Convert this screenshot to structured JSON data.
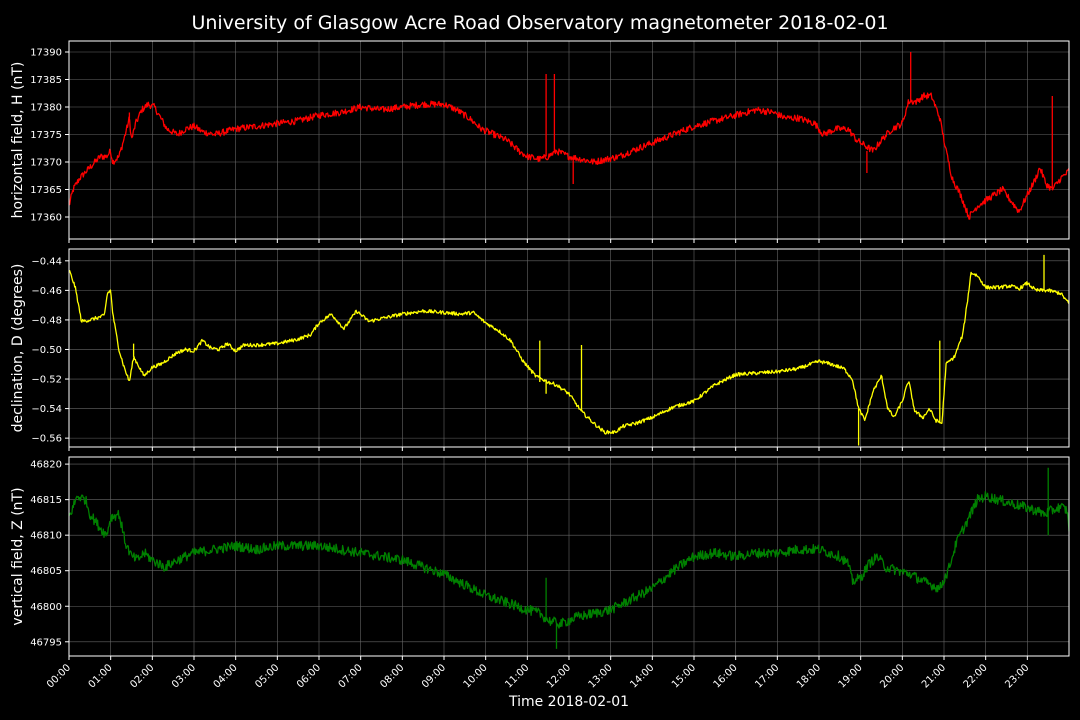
{
  "chart_data": {
    "type": "line",
    "title": "University of Glasgow Acre Road Observatory magnetometer 2018-02-01",
    "xlabel": "Time 2018-02-01",
    "x_ticks": [
      "00:00",
      "01:00",
      "02:00",
      "03:00",
      "04:00",
      "05:00",
      "06:00",
      "07:00",
      "08:00",
      "09:00",
      "10:00",
      "11:00",
      "12:00",
      "13:00",
      "14:00",
      "15:00",
      "16:00",
      "17:00",
      "18:00",
      "19:00",
      "20:00",
      "21:00",
      "22:00",
      "23:00"
    ],
    "grid": true,
    "panels": [
      {
        "ylabel": "horizontal field, H (nT)",
        "color": "#ff0000",
        "ylim": [
          17356,
          17392
        ],
        "yticks": [
          17360,
          17365,
          17370,
          17375,
          17380,
          17385,
          17390
        ],
        "ytick_labels": [
          "17360",
          "17365",
          "17370",
          "17375",
          "17380",
          "17385",
          "17390"
        ],
        "noise": 0.6,
        "points": [
          [
            0.0,
            17362
          ],
          [
            0.1,
            17365
          ],
          [
            0.25,
            17367
          ],
          [
            0.5,
            17369
          ],
          [
            0.75,
            17371
          ],
          [
            0.9,
            17371
          ],
          [
            1.0,
            17372
          ],
          [
            1.05,
            17370
          ],
          [
            1.2,
            17371
          ],
          [
            1.35,
            17375
          ],
          [
            1.45,
            17378
          ],
          [
            1.5,
            17374
          ],
          [
            1.6,
            17377
          ],
          [
            1.75,
            17379.5
          ],
          [
            1.9,
            17380.5
          ],
          [
            2.05,
            17380
          ],
          [
            2.2,
            17378
          ],
          [
            2.35,
            17376
          ],
          [
            2.6,
            17375
          ],
          [
            2.8,
            17376
          ],
          [
            3.0,
            17376.5
          ],
          [
            3.2,
            17375.5
          ],
          [
            3.5,
            17375
          ],
          [
            4.0,
            17376
          ],
          [
            4.5,
            17376.5
          ],
          [
            5.0,
            17377
          ],
          [
            5.5,
            17377.5
          ],
          [
            6.0,
            17378.5
          ],
          [
            6.5,
            17379
          ],
          [
            7.0,
            17380
          ],
          [
            7.5,
            17379.5
          ],
          [
            8.0,
            17380
          ],
          [
            8.5,
            17380.5
          ],
          [
            9.0,
            17380.5
          ],
          [
            9.3,
            17379.5
          ],
          [
            9.6,
            17378
          ],
          [
            9.9,
            17376
          ],
          [
            10.2,
            17375
          ],
          [
            10.5,
            17374
          ],
          [
            10.8,
            17372
          ],
          [
            11.0,
            17371
          ],
          [
            11.3,
            17370.5
          ],
          [
            11.5,
            17371
          ],
          [
            11.7,
            17372
          ],
          [
            12.0,
            17371
          ],
          [
            12.3,
            17370.5
          ],
          [
            12.6,
            17370
          ],
          [
            12.9,
            17370.5
          ],
          [
            13.2,
            17371
          ],
          [
            13.5,
            17372
          ],
          [
            14.0,
            17373.5
          ],
          [
            14.5,
            17375
          ],
          [
            15.0,
            17376.5
          ],
          [
            15.5,
            17377.5
          ],
          [
            16.0,
            17378.5
          ],
          [
            16.5,
            17379.5
          ],
          [
            16.9,
            17379
          ],
          [
            17.2,
            17378
          ],
          [
            17.5,
            17378
          ],
          [
            17.9,
            17377
          ],
          [
            18.1,
            17375
          ],
          [
            18.4,
            17376
          ],
          [
            18.7,
            17376
          ],
          [
            18.9,
            17374
          ],
          [
            19.1,
            17373
          ],
          [
            19.3,
            17372
          ],
          [
            19.5,
            17374
          ],
          [
            19.75,
            17376
          ],
          [
            20.0,
            17377
          ],
          [
            20.15,
            17381
          ],
          [
            20.35,
            17381
          ],
          [
            20.5,
            17382
          ],
          [
            20.7,
            17382
          ],
          [
            20.9,
            17378
          ],
          [
            21.05,
            17372
          ],
          [
            21.2,
            17367
          ],
          [
            21.4,
            17364
          ],
          [
            21.6,
            17360
          ],
          [
            21.8,
            17362
          ],
          [
            22.0,
            17363
          ],
          [
            22.2,
            17364
          ],
          [
            22.4,
            17365
          ],
          [
            22.6,
            17363
          ],
          [
            22.8,
            17361
          ],
          [
            23.0,
            17364
          ],
          [
            23.2,
            17367
          ],
          [
            23.3,
            17369
          ],
          [
            23.45,
            17366
          ],
          [
            23.6,
            17365
          ],
          [
            23.8,
            17367
          ],
          [
            23.95,
            17368
          ],
          [
            24.0,
            17368.5
          ]
        ],
        "spikes": [
          [
            1.45,
            17379
          ],
          [
            11.45,
            17386
          ],
          [
            11.65,
            17386
          ],
          [
            20.2,
            17390
          ],
          [
            23.6,
            17382
          ],
          [
            19.15,
            17368
          ],
          [
            12.1,
            17366
          ]
        ]
      },
      {
        "ylabel": "declination, D (degrees)",
        "color": "#ffff00",
        "ylim": [
          -0.566,
          -0.432
        ],
        "yticks": [
          -0.56,
          -0.54,
          -0.52,
          -0.5,
          -0.48,
          -0.46,
          -0.44
        ],
        "ytick_labels": [
          "−0.56",
          "−0.54",
          "−0.52",
          "−0.50",
          "−0.48",
          "−0.46",
          "−0.44"
        ],
        "noise": 0.0012,
        "points": [
          [
            0.0,
            -0.446
          ],
          [
            0.15,
            -0.458
          ],
          [
            0.3,
            -0.481
          ],
          [
            0.5,
            -0.48
          ],
          [
            0.75,
            -0.478
          ],
          [
            0.85,
            -0.477
          ],
          [
            0.92,
            -0.462
          ],
          [
            1.0,
            -0.46
          ],
          [
            1.05,
            -0.476
          ],
          [
            1.2,
            -0.5
          ],
          [
            1.3,
            -0.51
          ],
          [
            1.45,
            -0.522
          ],
          [
            1.55,
            -0.505
          ],
          [
            1.65,
            -0.51
          ],
          [
            1.8,
            -0.518
          ],
          [
            2.0,
            -0.512
          ],
          [
            2.2,
            -0.51
          ],
          [
            2.4,
            -0.506
          ],
          [
            2.6,
            -0.502
          ],
          [
            2.8,
            -0.5
          ],
          [
            3.0,
            -0.501
          ],
          [
            3.2,
            -0.494
          ],
          [
            3.4,
            -0.499
          ],
          [
            3.6,
            -0.5
          ],
          [
            3.8,
            -0.496
          ],
          [
            4.0,
            -0.501
          ],
          [
            4.2,
            -0.497
          ],
          [
            4.5,
            -0.497
          ],
          [
            5.0,
            -0.496
          ],
          [
            5.5,
            -0.493
          ],
          [
            5.8,
            -0.49
          ],
          [
            6.0,
            -0.482
          ],
          [
            6.3,
            -0.476
          ],
          [
            6.6,
            -0.486
          ],
          [
            6.9,
            -0.474
          ],
          [
            7.2,
            -0.481
          ],
          [
            7.5,
            -0.479
          ],
          [
            8.0,
            -0.476
          ],
          [
            8.5,
            -0.474
          ],
          [
            9.0,
            -0.475
          ],
          [
            9.4,
            -0.476
          ],
          [
            9.7,
            -0.475
          ],
          [
            10.0,
            -0.482
          ],
          [
            10.3,
            -0.487
          ],
          [
            10.6,
            -0.494
          ],
          [
            10.9,
            -0.508
          ],
          [
            11.2,
            -0.518
          ],
          [
            11.5,
            -0.522
          ],
          [
            11.7,
            -0.524
          ],
          [
            12.0,
            -0.53
          ],
          [
            12.3,
            -0.542
          ],
          [
            12.6,
            -0.55
          ],
          [
            12.85,
            -0.556
          ],
          [
            13.1,
            -0.556
          ],
          [
            13.3,
            -0.552
          ],
          [
            13.6,
            -0.55
          ],
          [
            14.0,
            -0.546
          ],
          [
            14.5,
            -0.539
          ],
          [
            15.0,
            -0.535
          ],
          [
            15.5,
            -0.524
          ],
          [
            16.0,
            -0.517
          ],
          [
            16.5,
            -0.516
          ],
          [
            17.0,
            -0.515
          ],
          [
            17.5,
            -0.513
          ],
          [
            18.0,
            -0.508
          ],
          [
            18.3,
            -0.51
          ],
          [
            18.6,
            -0.513
          ],
          [
            18.8,
            -0.52
          ],
          [
            18.95,
            -0.54
          ],
          [
            19.1,
            -0.548
          ],
          [
            19.3,
            -0.528
          ],
          [
            19.5,
            -0.518
          ],
          [
            19.65,
            -0.54
          ],
          [
            19.8,
            -0.546
          ],
          [
            20.0,
            -0.535
          ],
          [
            20.15,
            -0.521
          ],
          [
            20.3,
            -0.542
          ],
          [
            20.5,
            -0.546
          ],
          [
            20.65,
            -0.54
          ],
          [
            20.8,
            -0.548
          ],
          [
            20.95,
            -0.55
          ],
          [
            21.05,
            -0.51
          ],
          [
            21.25,
            -0.505
          ],
          [
            21.45,
            -0.49
          ],
          [
            21.55,
            -0.47
          ],
          [
            21.65,
            -0.448
          ],
          [
            21.8,
            -0.45
          ],
          [
            22.0,
            -0.458
          ],
          [
            22.3,
            -0.458
          ],
          [
            22.6,
            -0.457
          ],
          [
            22.8,
            -0.459
          ],
          [
            23.0,
            -0.455
          ],
          [
            23.2,
            -0.46
          ],
          [
            23.5,
            -0.46
          ],
          [
            23.8,
            -0.462
          ],
          [
            24.0,
            -0.469
          ]
        ],
        "spikes": [
          [
            1.55,
            -0.496
          ],
          [
            11.3,
            -0.494
          ],
          [
            12.3,
            -0.497
          ],
          [
            20.9,
            -0.494
          ],
          [
            23.4,
            -0.436
          ],
          [
            18.95,
            -0.565
          ],
          [
            11.45,
            -0.53
          ]
        ]
      },
      {
        "ylabel": "vertical field, Z (nT)",
        "color": "#008000",
        "ylim": [
          46793,
          46821
        ],
        "yticks": [
          46795,
          46800,
          46805,
          46810,
          46815,
          46820
        ],
        "ytick_labels": [
          "46795",
          "46800",
          "46805",
          "46810",
          "46815",
          "46820"
        ],
        "noise": 0.7,
        "points": [
          [
            0.0,
            46812.5
          ],
          [
            0.1,
            46814
          ],
          [
            0.2,
            46815.5
          ],
          [
            0.4,
            46815
          ],
          [
            0.5,
            46813
          ],
          [
            0.75,
            46811
          ],
          [
            0.9,
            46810
          ],
          [
            1.0,
            46812.5
          ],
          [
            1.2,
            46813
          ],
          [
            1.35,
            46809
          ],
          [
            1.5,
            46807
          ],
          [
            1.65,
            46806.5
          ],
          [
            1.8,
            46807.5
          ],
          [
            2.0,
            46806.5
          ],
          [
            2.3,
            46805.5
          ],
          [
            2.6,
            46806.5
          ],
          [
            3.0,
            46807.5
          ],
          [
            3.5,
            46808
          ],
          [
            4.0,
            46808.5
          ],
          [
            4.5,
            46808
          ],
          [
            5.0,
            46808.5
          ],
          [
            5.5,
            46808.5
          ],
          [
            6.0,
            46808.5
          ],
          [
            6.5,
            46808
          ],
          [
            7.0,
            46807.5
          ],
          [
            7.5,
            46807
          ],
          [
            8.0,
            46806.5
          ],
          [
            8.5,
            46805.5
          ],
          [
            9.0,
            46804.5
          ],
          [
            9.5,
            46803
          ],
          [
            10.0,
            46801.5
          ],
          [
            10.5,
            46800.5
          ],
          [
            11.0,
            46799.5
          ],
          [
            11.3,
            46799
          ],
          [
            11.5,
            46798
          ],
          [
            11.8,
            46797.5
          ],
          [
            12.2,
            46798.5
          ],
          [
            12.6,
            46799
          ],
          [
            13.0,
            46799.5
          ],
          [
            13.5,
            46801
          ],
          [
            14.0,
            46802.5
          ],
          [
            14.5,
            46805
          ],
          [
            15.0,
            46807
          ],
          [
            15.5,
            46807.5
          ],
          [
            16.0,
            46807
          ],
          [
            16.5,
            46807.5
          ],
          [
            17.0,
            46807.5
          ],
          [
            17.5,
            46808
          ],
          [
            18.0,
            46808
          ],
          [
            18.5,
            46807
          ],
          [
            18.7,
            46806
          ],
          [
            18.8,
            46803.5
          ],
          [
            19.0,
            46804
          ],
          [
            19.2,
            46806
          ],
          [
            19.4,
            46807
          ],
          [
            19.6,
            46805.5
          ],
          [
            19.9,
            46805
          ],
          [
            20.2,
            46804.5
          ],
          [
            20.5,
            46803.5
          ],
          [
            20.9,
            46802.5
          ],
          [
            21.1,
            46805
          ],
          [
            21.3,
            46809
          ],
          [
            21.6,
            46812.5
          ],
          [
            21.8,
            46815
          ],
          [
            22.0,
            46815.5
          ],
          [
            22.3,
            46815
          ],
          [
            22.6,
            46814.5
          ],
          [
            22.9,
            46814
          ],
          [
            23.2,
            46813.5
          ],
          [
            23.4,
            46813
          ],
          [
            23.6,
            46813.5
          ],
          [
            23.8,
            46814
          ],
          [
            23.95,
            46813.5
          ],
          [
            24.0,
            46811
          ]
        ],
        "spikes": [
          [
            11.45,
            46804
          ],
          [
            11.7,
            46794
          ],
          [
            23.5,
            46819.5
          ],
          [
            23.5,
            46810
          ]
        ]
      }
    ]
  }
}
